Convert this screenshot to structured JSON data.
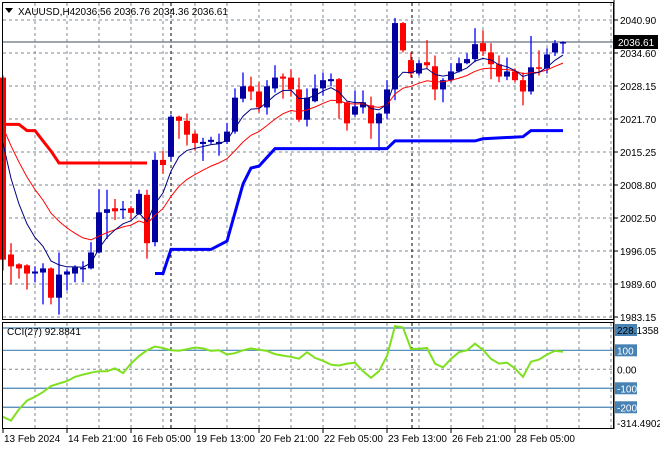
{
  "header": {
    "symbol": "XAUUSD,H4",
    "ohlc": "2036.56 2036.76 2034.36 2036.61",
    "menu_icon": "triangle-down-icon"
  },
  "colors": {
    "bull": "#0000a0",
    "bear": "#ff0000",
    "fast_ma": "#000080",
    "slow_ma": "#ff0000",
    "upper_step": "#ff0000",
    "lower_step": "#0000ff",
    "cci": "#80e020",
    "level": "#4682b4",
    "grid": "#7f8a96"
  },
  "price_axis": {
    "labels": [
      "2040.90",
      "2034.60",
      "2028.15",
      "2021.70",
      "2015.25",
      "2008.80",
      "2002.50",
      "1996.05",
      "1989.60",
      "1983.15"
    ],
    "current": "2036.61"
  },
  "time_axis": {
    "labels": [
      "13 Feb 2024",
      "14 Feb 21:00",
      "16 Feb 05:00",
      "19 Feb 13:00",
      "20 Feb 21:00",
      "22 Feb 05:00",
      "23 Feb 13:00",
      "26 Feb 21:00",
      "28 Feb 05:00"
    ]
  },
  "indicator": {
    "title": "CCI(27) 92.8841",
    "max_label": "228.1358",
    "min_label": "-314.4902",
    "levels": [
      "100",
      "0.00",
      "-100",
      "-200"
    ]
  },
  "chart_data": {
    "type": "candlestick",
    "ylim": [
      1983.15,
      2040.9
    ],
    "candles": [
      [
        2029.7,
        2030.1,
        1992.2,
        1994.3
      ],
      [
        1995.3,
        1997.5,
        1989.5,
        1993.0
      ],
      [
        1993.4,
        1993.6,
        1990.6,
        1992.6
      ],
      [
        1993.2,
        1993.4,
        1988.5,
        1991.6
      ],
      [
        1991.6,
        1993.0,
        1989.9,
        1992.0
      ],
      [
        1991.8,
        1993.6,
        1985.6,
        1992.6
      ],
      [
        1992.6,
        1992.8,
        1985.6,
        1986.9
      ],
      [
        1986.9,
        1995.7,
        1983.6,
        1991.4
      ],
      [
        1991.4,
        1992.4,
        1988.3,
        1992.0
      ],
      [
        1991.6,
        1993.2,
        1989.9,
        1992.8
      ],
      [
        1992.5,
        1994.0,
        1989.9,
        1992.7
      ],
      [
        1992.6,
        1997.7,
        1992.4,
        1995.7
      ],
      [
        1995.7,
        2008.0,
        1995.5,
        2003.5
      ],
      [
        2003.4,
        2007.9,
        1998.3,
        2004.1
      ],
      [
        2004.3,
        2006.1,
        2002.0,
        2003.7
      ],
      [
        2004.0,
        2005.7,
        2002.2,
        2004.2
      ],
      [
        2004.3,
        2004.7,
        2002.2,
        2003.4
      ],
      [
        2003.2,
        2007.9,
        2003.0,
        2007.1
      ],
      [
        2006.9,
        2007.9,
        1994.5,
        1997.5
      ],
      [
        1997.7,
        2015.1,
        1996.9,
        2013.7
      ],
      [
        2013.7,
        2015.5,
        2011.0,
        2012.7
      ],
      [
        2014.3,
        2022.5,
        2013.5,
        2022.1
      ],
      [
        2022.1,
        2022.3,
        2017.8,
        2021.3
      ],
      [
        2021.3,
        2022.7,
        2016.5,
        2018.6
      ],
      [
        2018.8,
        2019.4,
        2015.5,
        2017.0
      ],
      [
        2016.8,
        2018.0,
        2013.5,
        2017.2
      ],
      [
        2017.2,
        2018.2,
        2016.8,
        2017.6
      ],
      [
        2016.8,
        2018.8,
        2014.5,
        2017.2
      ],
      [
        2017.2,
        2020.9,
        2016.8,
        2019.2
      ],
      [
        2019.2,
        2027.6,
        2018.8,
        2025.8
      ],
      [
        2025.6,
        2030.7,
        2024.9,
        2028.0
      ],
      [
        2028.0,
        2029.9,
        2025.3,
        2027.0
      ],
      [
        2027.0,
        2028.8,
        2022.9,
        2023.9
      ],
      [
        2023.9,
        2029.2,
        2022.5,
        2028.0
      ],
      [
        2027.6,
        2032.1,
        2026.8,
        2029.7
      ],
      [
        2029.9,
        2030.5,
        2025.6,
        2029.5
      ],
      [
        2029.7,
        2031.3,
        2026.0,
        2027.4
      ],
      [
        2027.4,
        2029.7,
        2021.1,
        2021.5
      ],
      [
        2021.5,
        2027.6,
        2020.2,
        2025.8
      ],
      [
        2025.1,
        2030.3,
        2024.9,
        2027.6
      ],
      [
        2027.6,
        2030.7,
        2026.2,
        2029.2
      ],
      [
        2029.0,
        2030.5,
        2028.0,
        2029.4
      ],
      [
        2029.4,
        2029.6,
        2021.7,
        2024.7
      ],
      [
        2024.9,
        2025.1,
        2019.4,
        2020.8
      ],
      [
        2022.5,
        2027.2,
        2022.1,
        2024.1
      ],
      [
        2023.9,
        2027.2,
        2022.7,
        2024.9
      ],
      [
        2024.3,
        2026.0,
        2017.8,
        2020.8
      ],
      [
        2020.8,
        2022.9,
        2015.5,
        2022.7
      ],
      [
        2022.7,
        2029.2,
        2021.7,
        2027.4
      ],
      [
        2027.4,
        2041.3,
        2025.3,
        2040.3
      ],
      [
        2040.3,
        2040.5,
        2034.6,
        2035.0
      ],
      [
        2033.1,
        2034.6,
        2029.7,
        2030.5
      ],
      [
        2030.5,
        2033.1,
        2030.1,
        2032.5
      ],
      [
        2032.7,
        2037.0,
        2031.5,
        2032.1
      ],
      [
        2031.9,
        2034.0,
        2025.3,
        2027.4
      ],
      [
        2027.4,
        2029.6,
        2024.9,
        2029.2
      ],
      [
        2029.2,
        2032.5,
        2028.8,
        2030.9
      ],
      [
        2030.9,
        2033.6,
        2030.7,
        2032.5
      ],
      [
        2032.5,
        2034.4,
        2032.3,
        2033.3
      ],
      [
        2033.3,
        2039.3,
        2032.7,
        2036.2
      ],
      [
        2036.4,
        2038.9,
        2033.9,
        2034.8
      ],
      [
        2034.6,
        2036.4,
        2029.4,
        2032.3
      ],
      [
        2032.3,
        2034.0,
        2028.8,
        2029.9
      ],
      [
        2029.9,
        2033.6,
        2029.2,
        2030.9
      ],
      [
        2030.9,
        2031.5,
        2028.8,
        2029.2
      ],
      [
        2029.2,
        2030.7,
        2024.3,
        2027.0
      ],
      [
        2027.0,
        2037.8,
        2026.4,
        2031.7
      ],
      [
        2031.7,
        2035.0,
        2030.1,
        2031.5
      ],
      [
        2031.5,
        2035.4,
        2030.5,
        2034.2
      ],
      [
        2034.6,
        2037.0,
        2033.9,
        2036.4
      ],
      [
        2036.56,
        2036.76,
        2034.36,
        2036.61
      ]
    ],
    "upper_step": [
      [
        0,
        2020.6
      ],
      [
        2,
        2020.6
      ],
      [
        3,
        2019.4
      ],
      [
        4,
        2019.4
      ],
      [
        5,
        2017.4
      ],
      [
        6,
        2015.4
      ],
      [
        7,
        2013.1
      ],
      [
        18,
        2013.1
      ]
    ],
    "lower_step": [
      [
        19,
        1991.6
      ],
      [
        20,
        1991.6
      ],
      [
        21,
        1996.3
      ],
      [
        26,
        1996.3
      ],
      [
        28,
        1997.9
      ],
      [
        30,
        2009.0
      ],
      [
        31,
        2012.1
      ],
      [
        32,
        2012.5
      ],
      [
        34,
        2015.9
      ],
      [
        48,
        2015.9
      ],
      [
        49,
        2017.4
      ],
      [
        59,
        2017.4
      ],
      [
        60,
        2017.8
      ],
      [
        65,
        2018.2
      ],
      [
        66,
        2019.4
      ],
      [
        70,
        2019.4
      ]
    ],
    "cci": {
      "ylim": [
        -314.4902,
        228.1358
      ],
      "levels": [
        100,
        0,
        -100,
        -200
      ],
      "values": [
        -250,
        -270,
        -210,
        -165,
        -145,
        -120,
        -88,
        -75,
        -62,
        -40,
        -28,
        -18,
        -10,
        -10,
        5,
        -20,
        30,
        70,
        100,
        120,
        112,
        100,
        98,
        106,
        115,
        110,
        97,
        100,
        78,
        85,
        100,
        110,
        103,
        97,
        80,
        72,
        66,
        56,
        90,
        60,
        45,
        25,
        20,
        30,
        35,
        -10,
        -45,
        -10,
        70,
        228,
        220,
        107,
        108,
        112,
        30,
        10,
        55,
        90,
        100,
        135,
        102,
        55,
        30,
        35,
        5,
        -40,
        40,
        51,
        78,
        97,
        92.8841
      ]
    }
  }
}
